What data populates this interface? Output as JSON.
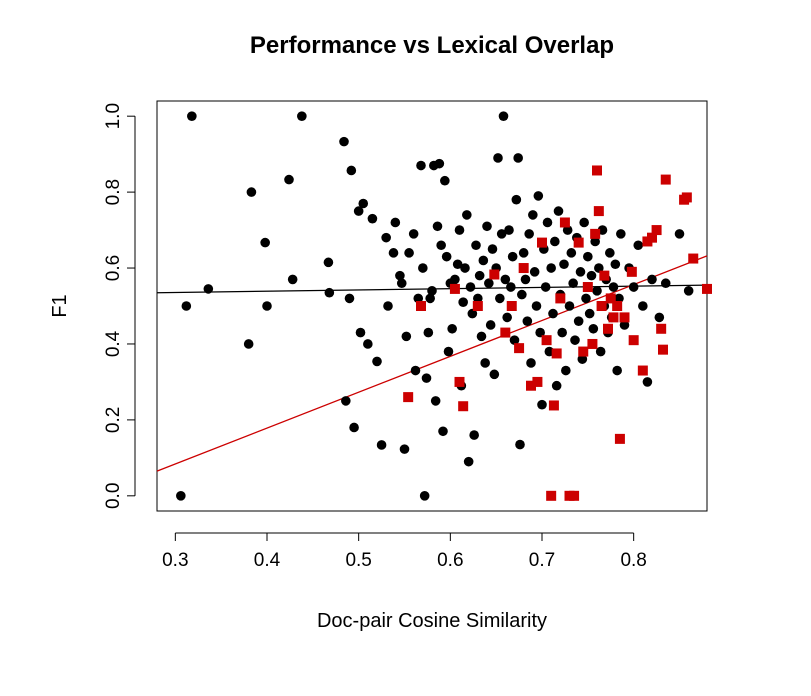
{
  "chart_data": {
    "type": "scatter",
    "title": "Performance vs Lexical Overlap",
    "xlabel": "Doc-pair Cosine Similarity",
    "ylabel": "F1",
    "xlim": [
      0.28,
      0.88
    ],
    "ylim": [
      -0.04,
      1.04
    ],
    "x_ticks": [
      "0.3",
      "0.4",
      "0.5",
      "0.6",
      "0.7",
      "0.8"
    ],
    "y_ticks": [
      "0.0",
      "0.2",
      "0.4",
      "0.6",
      "0.8",
      "1.0"
    ],
    "grid": false,
    "legend": false,
    "colors": {
      "series_black": "#000000",
      "series_red": "#cc0000",
      "fit_black": "#000000",
      "fit_red": "#cc0000"
    },
    "series": [
      {
        "marker": "circle",
        "color": "#000000",
        "points": [
          [
            0.306,
            0.0
          ],
          [
            0.312,
            0.5
          ],
          [
            0.318,
            1.0
          ],
          [
            0.336,
            0.545
          ],
          [
            0.38,
            0.4
          ],
          [
            0.383,
            0.8
          ],
          [
            0.398,
            0.667
          ],
          [
            0.4,
            0.5
          ],
          [
            0.424,
            0.833
          ],
          [
            0.428,
            0.57
          ],
          [
            0.438,
            1.0
          ],
          [
            0.467,
            0.615
          ],
          [
            0.468,
            0.535
          ],
          [
            0.484,
            0.933
          ],
          [
            0.486,
            0.25
          ],
          [
            0.49,
            0.52
          ],
          [
            0.492,
            0.857
          ],
          [
            0.495,
            0.18
          ],
          [
            0.5,
            0.75
          ],
          [
            0.502,
            0.43
          ],
          [
            0.505,
            0.77
          ],
          [
            0.51,
            0.4
          ],
          [
            0.515,
            0.73
          ],
          [
            0.52,
            0.354
          ],
          [
            0.525,
            0.134
          ],
          [
            0.53,
            0.68
          ],
          [
            0.532,
            0.5
          ],
          [
            0.538,
            0.64
          ],
          [
            0.54,
            0.72
          ],
          [
            0.545,
            0.58
          ],
          [
            0.547,
            0.56
          ],
          [
            0.55,
            0.123
          ],
          [
            0.552,
            0.42
          ],
          [
            0.555,
            0.64
          ],
          [
            0.56,
            0.69
          ],
          [
            0.562,
            0.33
          ],
          [
            0.565,
            0.52
          ],
          [
            0.568,
            0.87
          ],
          [
            0.57,
            0.6
          ],
          [
            0.572,
            0.0
          ],
          [
            0.574,
            0.31
          ],
          [
            0.576,
            0.43
          ],
          [
            0.578,
            0.52
          ],
          [
            0.58,
            0.54
          ],
          [
            0.582,
            0.87
          ],
          [
            0.584,
            0.25
          ],
          [
            0.586,
            0.71
          ],
          [
            0.588,
            0.875
          ],
          [
            0.59,
            0.66
          ],
          [
            0.592,
            0.17
          ],
          [
            0.594,
            0.83
          ],
          [
            0.596,
            0.63
          ],
          [
            0.598,
            0.38
          ],
          [
            0.6,
            0.56
          ],
          [
            0.602,
            0.44
          ],
          [
            0.605,
            0.57
          ],
          [
            0.608,
            0.61
          ],
          [
            0.61,
            0.7
          ],
          [
            0.612,
            0.29
          ],
          [
            0.614,
            0.51
          ],
          [
            0.616,
            0.6
          ],
          [
            0.618,
            0.74
          ],
          [
            0.62,
            0.09
          ],
          [
            0.622,
            0.55
          ],
          [
            0.624,
            0.48
          ],
          [
            0.626,
            0.16
          ],
          [
            0.628,
            0.66
          ],
          [
            0.63,
            0.52
          ],
          [
            0.632,
            0.58
          ],
          [
            0.634,
            0.42
          ],
          [
            0.636,
            0.62
          ],
          [
            0.638,
            0.35
          ],
          [
            0.64,
            0.71
          ],
          [
            0.642,
            0.56
          ],
          [
            0.644,
            0.45
          ],
          [
            0.646,
            0.65
          ],
          [
            0.648,
            0.32
          ],
          [
            0.65,
            0.6
          ],
          [
            0.652,
            0.89
          ],
          [
            0.654,
            0.52
          ],
          [
            0.656,
            0.69
          ],
          [
            0.658,
            1.0
          ],
          [
            0.66,
            0.57
          ],
          [
            0.662,
            0.47
          ],
          [
            0.664,
            0.7
          ],
          [
            0.666,
            0.55
          ],
          [
            0.668,
            0.63
          ],
          [
            0.67,
            0.41
          ],
          [
            0.672,
            0.78
          ],
          [
            0.674,
            0.89
          ],
          [
            0.676,
            0.135
          ],
          [
            0.678,
            0.53
          ],
          [
            0.68,
            0.64
          ],
          [
            0.682,
            0.57
          ],
          [
            0.684,
            0.46
          ],
          [
            0.686,
            0.69
          ],
          [
            0.688,
            0.35
          ],
          [
            0.69,
            0.74
          ],
          [
            0.692,
            0.59
          ],
          [
            0.694,
            0.5
          ],
          [
            0.696,
            0.79
          ],
          [
            0.698,
            0.43
          ],
          [
            0.7,
            0.24
          ],
          [
            0.702,
            0.65
          ],
          [
            0.704,
            0.55
          ],
          [
            0.706,
            0.72
          ],
          [
            0.708,
            0.38
          ],
          [
            0.71,
            0.6
          ],
          [
            0.712,
            0.48
          ],
          [
            0.714,
            0.67
          ],
          [
            0.716,
            0.29
          ],
          [
            0.718,
            0.75
          ],
          [
            0.72,
            0.53
          ],
          [
            0.722,
            0.43
          ],
          [
            0.724,
            0.61
          ],
          [
            0.726,
            0.33
          ],
          [
            0.728,
            0.7
          ],
          [
            0.73,
            0.5
          ],
          [
            0.732,
            0.64
          ],
          [
            0.734,
            0.56
          ],
          [
            0.736,
            0.41
          ],
          [
            0.738,
            0.68
          ],
          [
            0.74,
            0.46
          ],
          [
            0.742,
            0.59
          ],
          [
            0.744,
            0.36
          ],
          [
            0.746,
            0.72
          ],
          [
            0.748,
            0.52
          ],
          [
            0.75,
            0.63
          ],
          [
            0.752,
            0.48
          ],
          [
            0.754,
            0.58
          ],
          [
            0.756,
            0.44
          ],
          [
            0.758,
            0.67
          ],
          [
            0.76,
            0.54
          ],
          [
            0.762,
            0.6
          ],
          [
            0.764,
            0.38
          ],
          [
            0.766,
            0.7
          ],
          [
            0.768,
            0.5
          ],
          [
            0.77,
            0.57
          ],
          [
            0.772,
            0.43
          ],
          [
            0.774,
            0.64
          ],
          [
            0.776,
            0.47
          ],
          [
            0.778,
            0.55
          ],
          [
            0.78,
            0.61
          ],
          [
            0.782,
            0.33
          ],
          [
            0.784,
            0.52
          ],
          [
            0.786,
            0.69
          ],
          [
            0.79,
            0.45
          ],
          [
            0.795,
            0.6
          ],
          [
            0.8,
            0.55
          ],
          [
            0.805,
            0.66
          ],
          [
            0.81,
            0.5
          ],
          [
            0.815,
            0.3
          ],
          [
            0.82,
            0.57
          ],
          [
            0.828,
            0.47
          ],
          [
            0.835,
            0.56
          ],
          [
            0.85,
            0.69
          ],
          [
            0.86,
            0.54
          ]
        ]
      },
      {
        "marker": "square",
        "color": "#cc0000",
        "points": [
          [
            0.554,
            0.26
          ],
          [
            0.568,
            0.5
          ],
          [
            0.605,
            0.545
          ],
          [
            0.61,
            0.3
          ],
          [
            0.614,
            0.236
          ],
          [
            0.63,
            0.5
          ],
          [
            0.648,
            0.583
          ],
          [
            0.66,
            0.43
          ],
          [
            0.667,
            0.5
          ],
          [
            0.675,
            0.389
          ],
          [
            0.68,
            0.6
          ],
          [
            0.688,
            0.29
          ],
          [
            0.695,
            0.3
          ],
          [
            0.7,
            0.667
          ],
          [
            0.705,
            0.41
          ],
          [
            0.71,
            0.0
          ],
          [
            0.713,
            0.238
          ],
          [
            0.716,
            0.375
          ],
          [
            0.72,
            0.52
          ],
          [
            0.725,
            0.72
          ],
          [
            0.73,
            0.0
          ],
          [
            0.735,
            0.0
          ],
          [
            0.74,
            0.667
          ],
          [
            0.745,
            0.38
          ],
          [
            0.75,
            0.55
          ],
          [
            0.755,
            0.4
          ],
          [
            0.758,
            0.69
          ],
          [
            0.76,
            0.857
          ],
          [
            0.762,
            0.75
          ],
          [
            0.765,
            0.5
          ],
          [
            0.768,
            0.58
          ],
          [
            0.772,
            0.44
          ],
          [
            0.775,
            0.52
          ],
          [
            0.778,
            0.47
          ],
          [
            0.782,
            0.5
          ],
          [
            0.785,
            0.15
          ],
          [
            0.79,
            0.47
          ],
          [
            0.798,
            0.59
          ],
          [
            0.8,
            0.41
          ],
          [
            0.81,
            0.33
          ],
          [
            0.815,
            0.67
          ],
          [
            0.82,
            0.68
          ],
          [
            0.825,
            0.7
          ],
          [
            0.83,
            0.44
          ],
          [
            0.832,
            0.385
          ],
          [
            0.835,
            0.833
          ],
          [
            0.855,
            0.78
          ],
          [
            0.858,
            0.786
          ],
          [
            0.865,
            0.625
          ],
          [
            0.88,
            0.545
          ]
        ]
      }
    ],
    "fit_lines": [
      {
        "color": "#000000",
        "x": [
          0.28,
          0.88
        ],
        "y": [
          0.535,
          0.555
        ]
      },
      {
        "color": "#cc0000",
        "x": [
          0.28,
          0.88
        ],
        "y": [
          0.065,
          0.632
        ]
      }
    ]
  }
}
